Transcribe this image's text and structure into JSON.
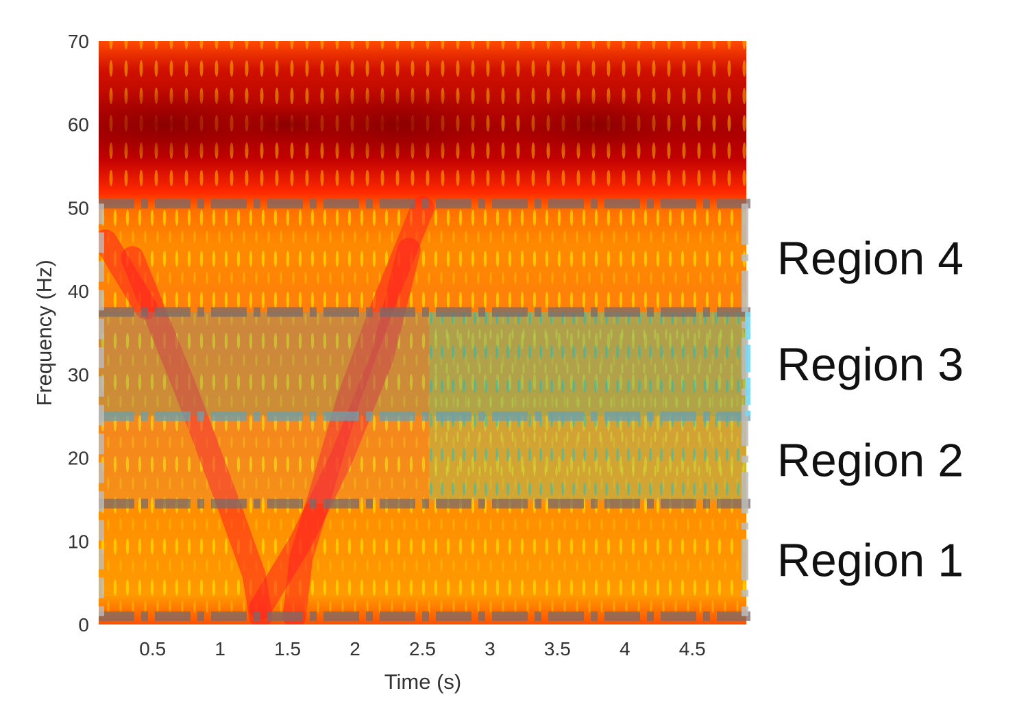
{
  "chart_data": {
    "type": "heatmap",
    "title": "",
    "xlabel": "Time (s)",
    "ylabel": "Frequency (Hz)",
    "xlim": [
      0.1,
      4.9
    ],
    "ylim": [
      0,
      70
    ],
    "x_ticks": [
      {
        "value": 0.5,
        "label": "0.5"
      },
      {
        "value": 1,
        "label": "1"
      },
      {
        "value": 1.5,
        "label": "1.5"
      },
      {
        "value": 2,
        "label": "2"
      },
      {
        "value": 2.5,
        "label": "2.5"
      },
      {
        "value": 3,
        "label": "3"
      },
      {
        "value": 3.5,
        "label": "3.5"
      },
      {
        "value": 4,
        "label": "4"
      },
      {
        "value": 4.5,
        "label": "4.5"
      }
    ],
    "y_ticks": [
      {
        "value": 0,
        "label": "0"
      },
      {
        "value": 10,
        "label": "10"
      },
      {
        "value": 20,
        "label": "20"
      },
      {
        "value": 30,
        "label": "30"
      },
      {
        "value": 40,
        "label": "40"
      },
      {
        "value": 50,
        "label": "50"
      },
      {
        "value": 60,
        "label": "60"
      },
      {
        "value": 70,
        "label": "70"
      }
    ],
    "regions": [
      {
        "label": "Region 1",
        "f_low": 1,
        "f_high": 14.5
      },
      {
        "label": "Region 2",
        "f_low": 14.5,
        "f_high": 25
      },
      {
        "label": "Region 3",
        "f_low": 25,
        "f_high": 37.5
      },
      {
        "label": "Region 4",
        "f_low": 37.5,
        "f_high": 50.5
      }
    ],
    "colors": {
      "dark_red": "#a00000",
      "red": "#ff1a00",
      "orange": "#ff7a00",
      "yellow": "#ffe000",
      "green": "#88cc44",
      "cyan": "#00ccdd",
      "region_dash": "#7a6a6a",
      "region_side_bar": "#bdbdbd",
      "region3_tint": "#4aa8b0"
    }
  }
}
